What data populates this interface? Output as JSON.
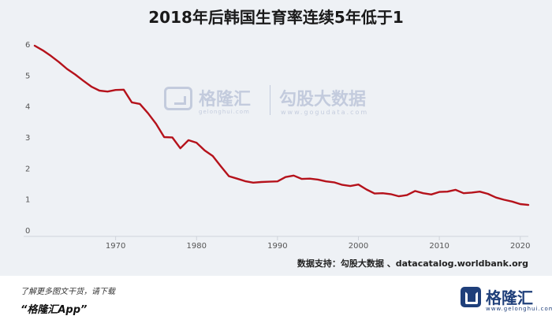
{
  "title": "2018年后韩国生育率连续5年低于1",
  "source": "数据支持：勾股大数据 、datacatalog.worldbank.org",
  "footer": {
    "cta": "了解更多图文干货，请下载",
    "app": "“格隆汇App”",
    "logo_text": "格隆汇",
    "logo_sub": "www.gelonghui.com"
  },
  "watermark": {
    "brand": "格隆汇",
    "brand_sub": "gelonghui.com",
    "partner": "勾股大数据",
    "partner_sub": "www.gogudata.com"
  },
  "colors": {
    "line": "#b5121b",
    "background": "#eef1f5",
    "axis": "#cfd3da",
    "tick_text": "#555555"
  },
  "chart_data": {
    "type": "line",
    "title": "2018年后韩国生育率连续5年低于1",
    "xlabel": "",
    "ylabel": "",
    "xlim": [
      1960,
      2021
    ],
    "ylim": [
      0,
      6
    ],
    "x_ticks": [
      1970,
      1980,
      1990,
      2000,
      2010,
      2020
    ],
    "y_ticks": [
      0,
      1,
      2,
      3,
      4,
      5,
      6
    ],
    "grid": false,
    "series": [
      {
        "x": [
          1960,
          1961,
          1962,
          1963,
          1964,
          1965,
          1966,
          1967,
          1968,
          1969,
          1970,
          1971,
          1972,
          1973,
          1974,
          1975,
          1976,
          1977,
          1978,
          1979,
          1980,
          1981,
          1982,
          1983,
          1984,
          1985,
          1986,
          1987,
          1988,
          1989,
          1990,
          1991,
          1992,
          1993,
          1994,
          1995,
          1996,
          1997,
          1998,
          1999,
          2000,
          2001,
          2002,
          2003,
          2004,
          2005,
          2006,
          2007,
          2008,
          2009,
          2010,
          2011,
          2012,
          2013,
          2014,
          2015,
          2016,
          2017,
          2018,
          2019,
          2020,
          2021
        ],
        "values": [
          5.95,
          5.8,
          5.62,
          5.42,
          5.2,
          5.02,
          4.82,
          4.63,
          4.5,
          4.47,
          4.52,
          4.53,
          4.12,
          4.07,
          3.77,
          3.43,
          3.0,
          2.99,
          2.64,
          2.9,
          2.82,
          2.57,
          2.39,
          2.06,
          1.74,
          1.66,
          1.58,
          1.53,
          1.55,
          1.56,
          1.57,
          1.71,
          1.76,
          1.65,
          1.66,
          1.63,
          1.57,
          1.54,
          1.46,
          1.42,
          1.47,
          1.31,
          1.18,
          1.19,
          1.16,
          1.09,
          1.13,
          1.26,
          1.19,
          1.15,
          1.23,
          1.24,
          1.3,
          1.19,
          1.21,
          1.24,
          1.17,
          1.05,
          0.98,
          0.92,
          0.84,
          0.81
        ]
      }
    ]
  }
}
